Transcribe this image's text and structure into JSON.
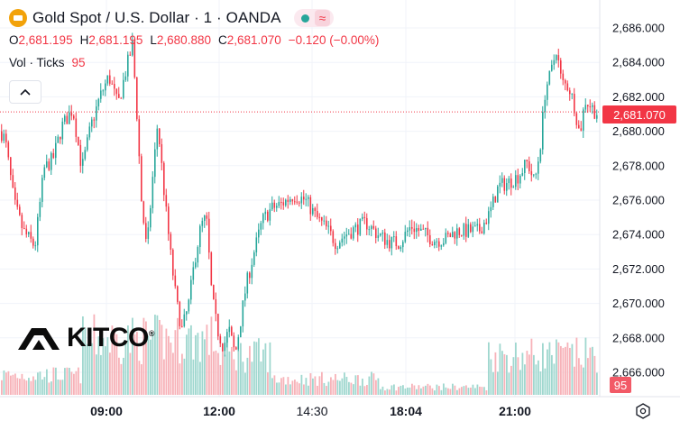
{
  "header": {
    "title": "Gold Spot / U.S. Dollar · 1 · OANDA",
    "ohlc": [
      {
        "k": "O",
        "v": "2,681.195"
      },
      {
        "k": "H",
        "v": "2,681.195"
      },
      {
        "k": "L",
        "v": "2,680.880"
      },
      {
        "k": "C",
        "v": "2,681.070"
      }
    ],
    "change": "−0.120 (−0.00%)",
    "vol_label": "Vol · Ticks",
    "vol_value": "95",
    "collapse_glyph": "^"
  },
  "logo": {
    "text": "KITCO",
    "reg": "®"
  },
  "current_price": "2,681.070",
  "current_volume": "95",
  "colors": {
    "up": "#26a69a",
    "down": "#f23645",
    "up_vol": "#9fd7cf",
    "down_vol": "#f7b2b8",
    "grid": "#f0f3fa"
  },
  "chart_data": {
    "type": "candlestick",
    "y_ticks": [
      "2,686.000",
      "2,684.000",
      "2,682.000",
      "2,680.000",
      "2,678.000",
      "2,676.000",
      "2,674.000",
      "2,672.000",
      "2,670.000",
      "2,668.000",
      "2,666.000"
    ],
    "ylim": [
      2665.2,
      2686.4
    ],
    "x_ticks": [
      {
        "label": "09:00",
        "bold": true
      },
      {
        "label": "12:00",
        "bold": true
      },
      {
        "label": "14:30",
        "bold": false
      },
      {
        "label": "18:04",
        "bold": true
      },
      {
        "label": "21:00",
        "bold": true
      }
    ],
    "price_path": [
      [
        0,
        2680.0
      ],
      [
        5,
        2679.5
      ],
      [
        15,
        2675.8
      ],
      [
        25,
        2674.2
      ],
      [
        38,
        2673.3
      ],
      [
        48,
        2677.8
      ],
      [
        58,
        2678.4
      ],
      [
        68,
        2680.3
      ],
      [
        80,
        2681.3
      ],
      [
        90,
        2677.8
      ],
      [
        100,
        2680.3
      ],
      [
        110,
        2682.0
      ],
      [
        120,
        2683.2
      ],
      [
        130,
        2681.5
      ],
      [
        140,
        2683.8
      ],
      [
        146,
        2685.0
      ],
      [
        150,
        2682.0
      ],
      [
        156,
        2676.0
      ],
      [
        162,
        2673.0
      ],
      [
        168,
        2677.0
      ],
      [
        174,
        2680.5
      ],
      [
        182,
        2676.0
      ],
      [
        188,
        2673.0
      ],
      [
        195,
        2670.0
      ],
      [
        201,
        2668.5
      ],
      [
        208,
        2669.8
      ],
      [
        215,
        2672.5
      ],
      [
        222,
        2674.5
      ],
      [
        228,
        2675.0
      ],
      [
        234,
        2670.5
      ],
      [
        240,
        2668.5
      ],
      [
        247,
        2667.5
      ],
      [
        253,
        2668.5
      ],
      [
        260,
        2667.0
      ],
      [
        266,
        2669.0
      ],
      [
        272,
        2671.0
      ],
      [
        280,
        2672.8
      ],
      [
        290,
        2674.8
      ],
      [
        300,
        2675.5
      ],
      [
        312,
        2675.8
      ],
      [
        325,
        2676.3
      ],
      [
        338,
        2676.0
      ],
      [
        350,
        2675.0
      ],
      [
        362,
        2674.3
      ],
      [
        372,
        2673.5
      ],
      [
        382,
        2674.0
      ],
      [
        392,
        2674.3
      ],
      [
        405,
        2674.7
      ],
      [
        418,
        2674.0
      ],
      [
        430,
        2673.6
      ],
      [
        442,
        2673.5
      ],
      [
        455,
        2674.5
      ],
      [
        468,
        2674.1
      ],
      [
        480,
        2673.7
      ],
      [
        492,
        2673.7
      ],
      [
        505,
        2674.2
      ],
      [
        518,
        2674.2
      ],
      [
        530,
        2674.2
      ],
      [
        542,
        2675.2
      ],
      [
        552,
        2676.8
      ],
      [
        562,
        2677.0
      ],
      [
        574,
        2677.4
      ],
      [
        584,
        2678.2
      ],
      [
        592,
        2677.0
      ],
      [
        598,
        2679.0
      ],
      [
        604,
        2682.5
      ],
      [
        610,
        2683.3
      ],
      [
        616,
        2684.8
      ],
      [
        622,
        2682.8
      ],
      [
        630,
        2682.6
      ],
      [
        636,
        2681.5
      ],
      [
        642,
        2679.8
      ],
      [
        648,
        2681.8
      ],
      [
        654,
        2681.5
      ],
      [
        660,
        2681.07
      ]
    ],
    "current_price": 2681.07
  },
  "icons": {
    "settings": "settings-gear-icon",
    "symbol": "gold-coin-icon",
    "live": "live-dot-icon",
    "wave": "wave-icon"
  }
}
